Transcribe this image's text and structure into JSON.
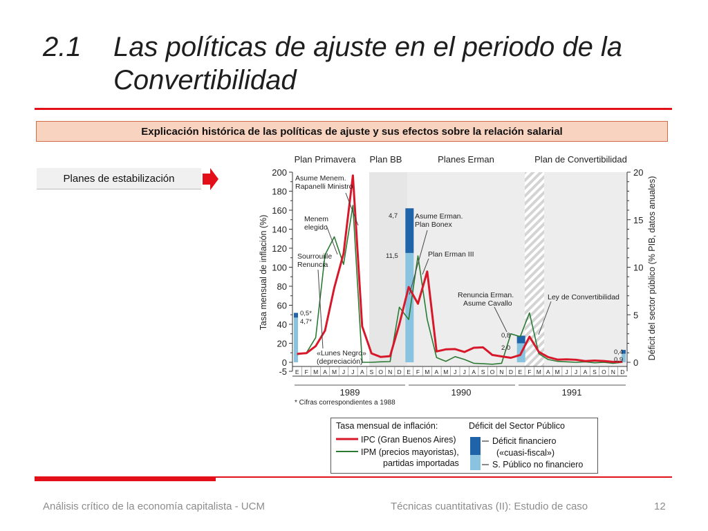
{
  "slide": {
    "section_number": "2.1",
    "title": "Las políticas de ajuste en el periodo de la Convertibilidad",
    "banner": "Explicación histórica de las políticas de ajuste y sus efectos sobre la relación salarial",
    "side_label": "Planes de estabilización",
    "footer_left": "Análisis crítico de la economía capitalista - UCM",
    "footer_center": "Técnicas cuantitativas (II): Estudio de caso",
    "page_number": "12"
  },
  "colors": {
    "accent_red": "#e3101a",
    "banner_fill": "#f8d3c0",
    "ipc_line": "#d7182a",
    "ipm_line": "#2a7a33",
    "deficit_financiero": "#1f64a8",
    "deficit_no_financiero": "#8ac3e0",
    "plan_shading": "#e6e6e6"
  },
  "chart_data": {
    "type": "line",
    "plans": [
      "Plan Primavera",
      "Plan BB",
      "Planes Erman",
      "Plan de Convertibilidad"
    ],
    "month_labels": [
      "E",
      "F",
      "M",
      "A",
      "M",
      "J",
      "J",
      "A",
      "S",
      "O",
      "N",
      "D",
      "E",
      "F",
      "M",
      "A",
      "M",
      "J",
      "J",
      "A",
      "S",
      "O",
      "N",
      "D",
      "E",
      "F",
      "M",
      "A",
      "M",
      "J",
      "J",
      "A",
      "S",
      "O",
      "N",
      "D"
    ],
    "years": [
      "1989",
      "1990",
      "1991"
    ],
    "ylabel": "Tasa mensual de inflación (%)",
    "y2label": "Déficit del sector público (% PIB, datos anuales)",
    "y_ticks": [
      "200",
      "180",
      "160",
      "140",
      "120",
      "100",
      "80",
      "60",
      "40",
      "20",
      "0",
      "-5"
    ],
    "y2_ticks": [
      "20",
      "15",
      "10",
      "5",
      "0"
    ],
    "ylim": [
      -5,
      200
    ],
    "y2lim": [
      0,
      20
    ],
    "series": [
      {
        "name": "IPC (Gran Buenos Aires)",
        "values": [
          8.9,
          9.6,
          17,
          33.4,
          78.5,
          114.5,
          196.6,
          37.9,
          9.4,
          5.6,
          6.5,
          40.1,
          79.2,
          61.6,
          95.5,
          11.4,
          13.6,
          13.9,
          10.8,
          15.3,
          15.7,
          7.7,
          6.2,
          4.7,
          7.7,
          27,
          11,
          5.5,
          2.8,
          3.1,
          2.6,
          1.3,
          1.8,
          1.4,
          0.4,
          0.6
        ]
      },
      {
        "name": "IPM (precios mayoristas), partidas importadas",
        "values": [
          8,
          10,
          26,
          113,
          132,
          103,
          165,
          0,
          0,
          0.5,
          0.7,
          58,
          45,
          112,
          45,
          5,
          1,
          6,
          3,
          -1,
          -1.5,
          -2,
          -1,
          30,
          27,
          52,
          9,
          3,
          1,
          0.5,
          0,
          0.5,
          -0.5,
          0,
          -1,
          0
        ]
      }
    ],
    "deficit_bars": [
      {
        "year": "1989",
        "sector_publico_no_financiero": 4.7,
        "deficit_financiero": 0.5
      },
      {
        "year": "1990",
        "sector_publico_no_financiero": 11.5,
        "deficit_financiero": 4.7
      },
      {
        "year": "1991",
        "sector_publico_no_financiero": 2.0,
        "deficit_financiero": 0.8
      },
      {
        "year": "1992",
        "sector_publico_no_financiero": 0.9,
        "deficit_financiero": 0.4
      }
    ],
    "bar_labels": [
      "0,5*",
      "4,7*",
      "4,7",
      "11,5",
      "0,8",
      "2,0",
      "0,4",
      "0,9"
    ],
    "annotations": [
      "Asume Menem. Rapanelli Ministro",
      "Menem elegido",
      "Sourrouille Renuncia",
      "«Lunes Negro» (depreciación)",
      "Asume Erman. Plan Bonex",
      "Plan Erman III",
      "Renuncia Erman. Asume Cavallo",
      "Ley de Convertibilidad"
    ],
    "footnote": "* Cifras correspondientes a 1988",
    "legend": {
      "inflation_header": "Tasa mensual de inflación:",
      "deficit_header": "Déficit del Sector Público",
      "ipc_label": "IPC (Gran Buenos Aires)",
      "ipm_label_1": "IPM (precios mayoristas),",
      "ipm_label_2": "partidas importadas",
      "financiero_label_1": "Déficit financiero",
      "financiero_label_2": "(«cuasi-fiscal»)",
      "no_financiero_label": "S. Público no financiero"
    }
  }
}
